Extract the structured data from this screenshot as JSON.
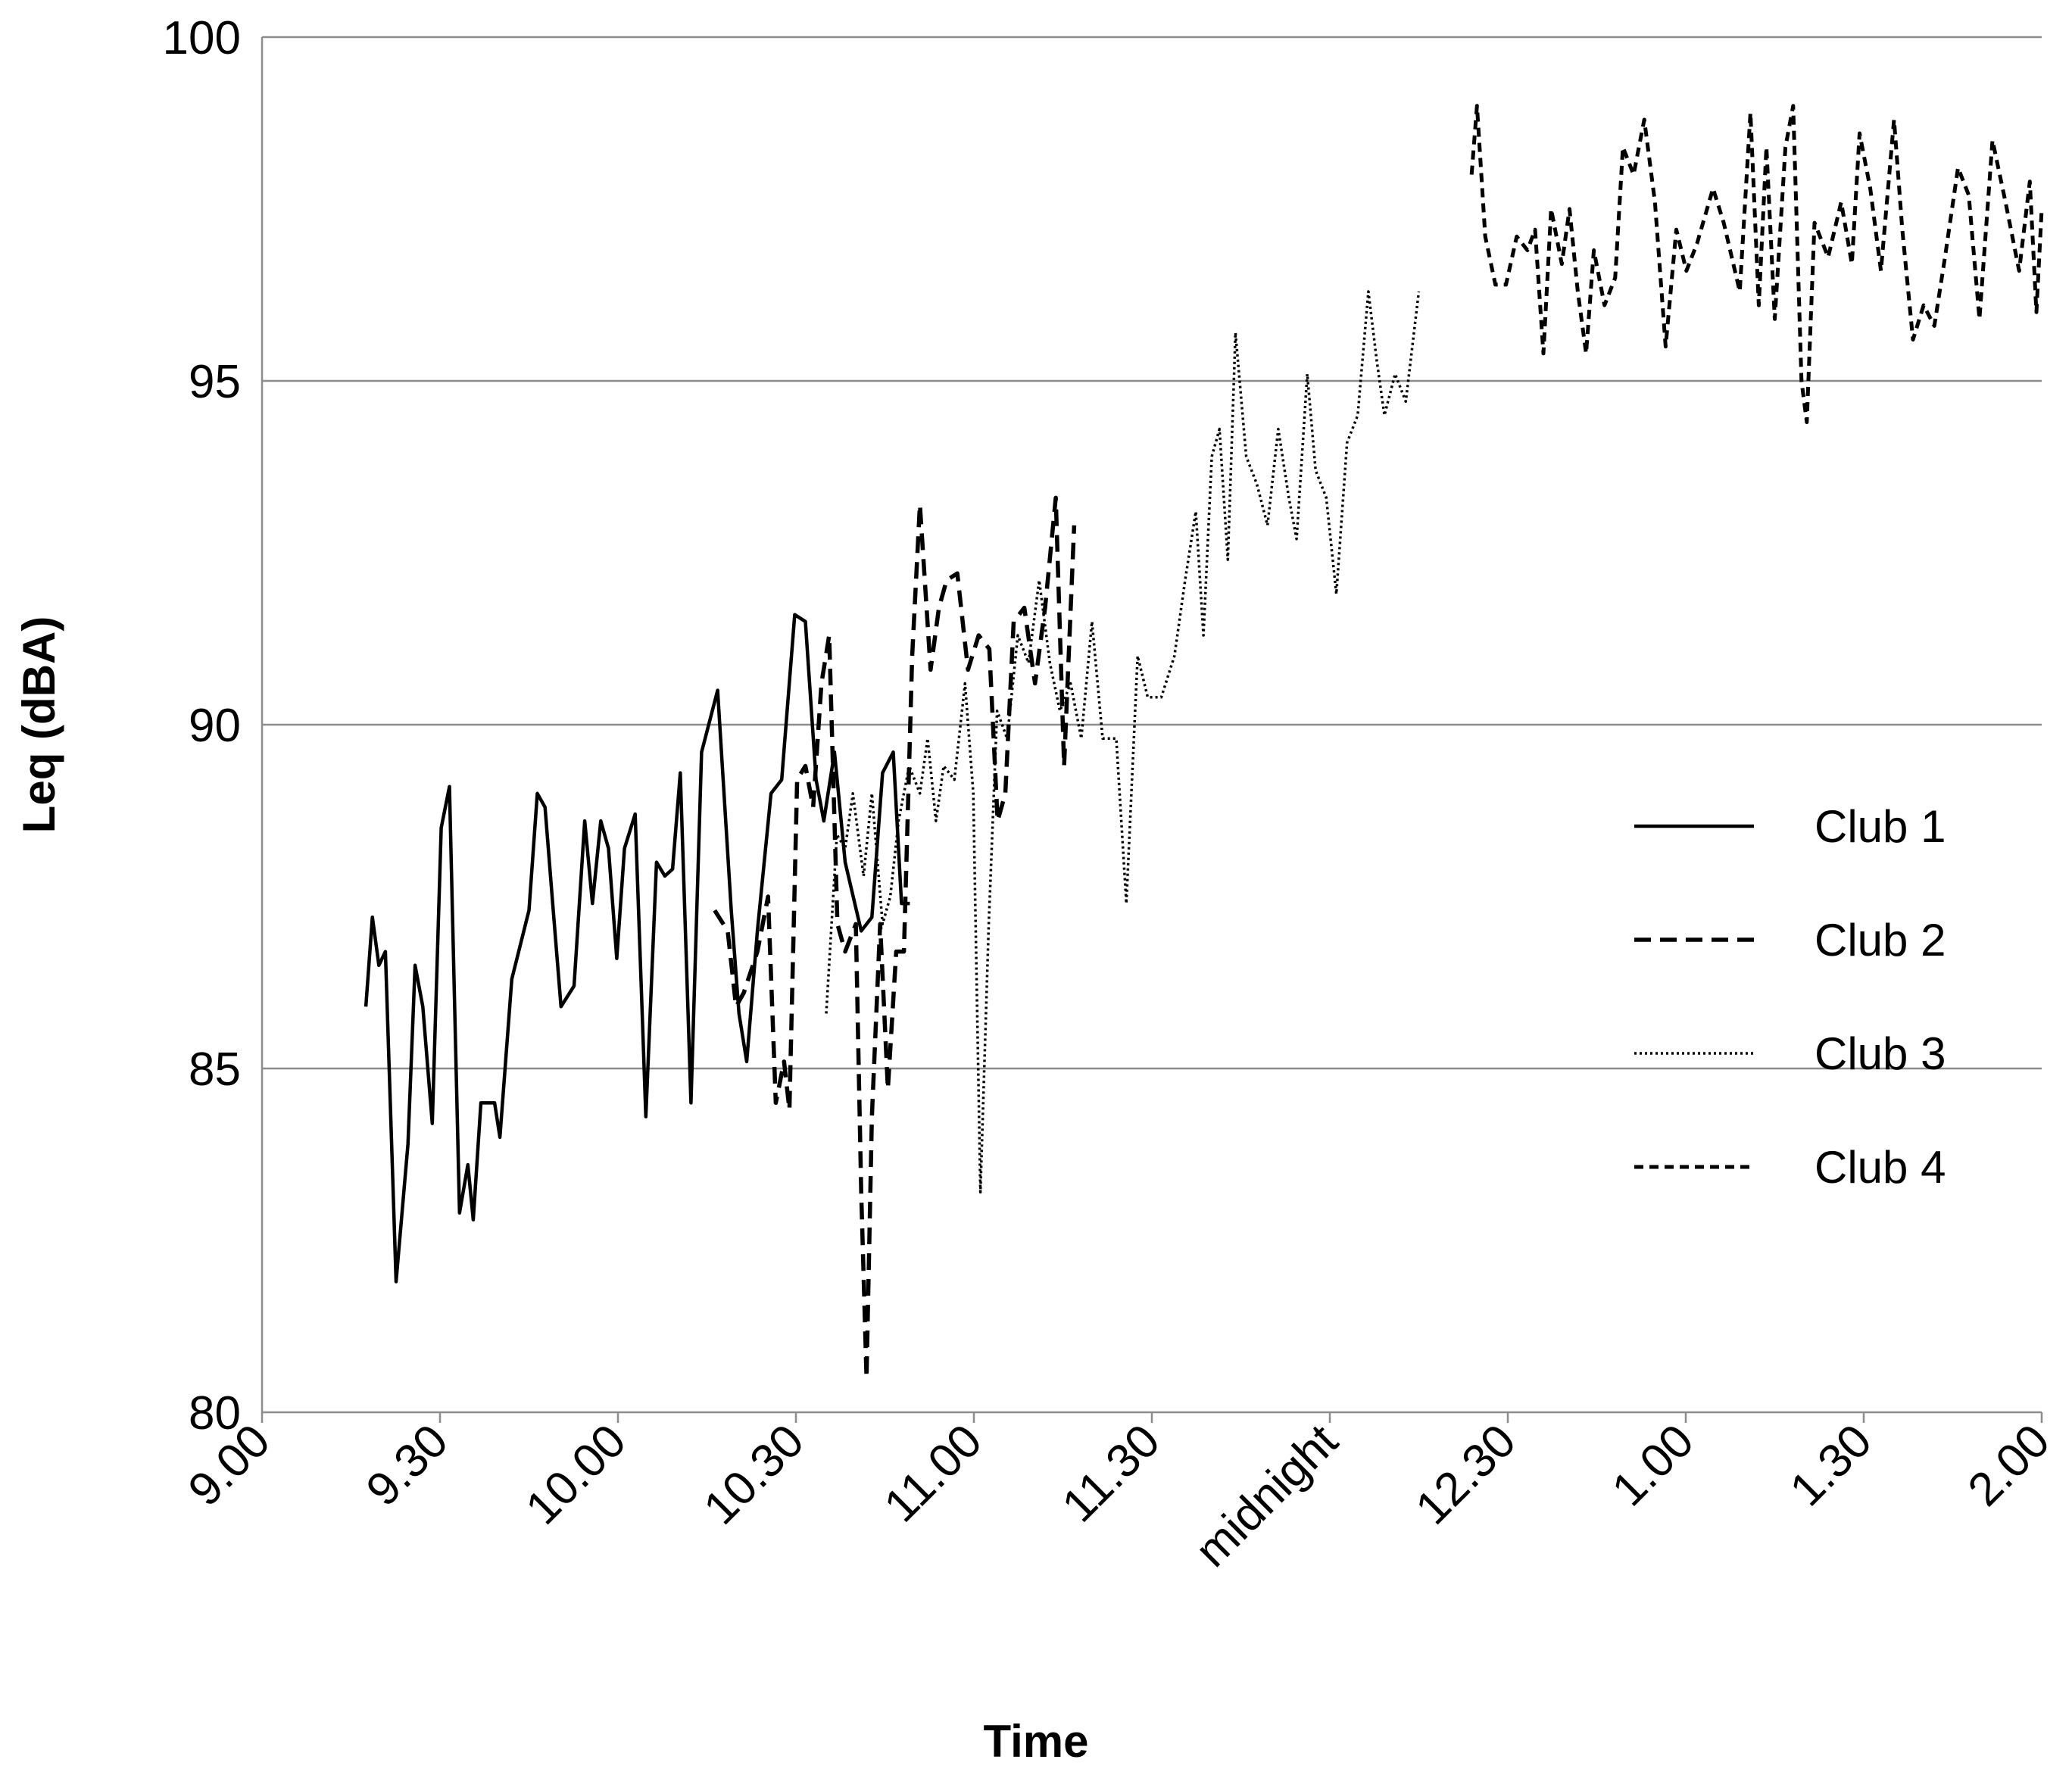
{
  "chart_data": {
    "type": "line",
    "x_label": "Time",
    "y_label": "Leq (dBA)",
    "xlim": [
      0,
      300
    ],
    "ylim": [
      80,
      100
    ],
    "xticks": [
      {
        "value": 0,
        "label": "9.00"
      },
      {
        "value": 30,
        "label": "9.30"
      },
      {
        "value": 60,
        "label": "10.00"
      },
      {
        "value": 90,
        "label": "10.30"
      },
      {
        "value": 120,
        "label": "11.00"
      },
      {
        "value": 150,
        "label": "11.30"
      },
      {
        "value": 180,
        "label": "midnight"
      },
      {
        "value": 210,
        "label": "12.30"
      },
      {
        "value": 240,
        "label": "1.00"
      },
      {
        "value": 270,
        "label": "1.30"
      },
      {
        "value": 300,
        "label": "2.00"
      }
    ],
    "yticks": [
      80,
      85,
      90,
      95,
      100
    ],
    "grid": true,
    "legend": "right",
    "series": [
      {
        "name": "Club 1",
        "color": "#000000",
        "line_style": "solid",
        "x": [
          17.5,
          18.6,
          19.7,
          20.8,
          22.6,
          24.6,
          25.8,
          27.1,
          28.7,
          30.2,
          31.6,
          33.3,
          34.7,
          35.6,
          36.9,
          39.2,
          40.1,
          42.1,
          45.0,
          46.4,
          47.7,
          49.0,
          50.4,
          52.6,
          54.4,
          55.7,
          57.1,
          58.4,
          59.8,
          61.1,
          62.9,
          64.7,
          66.5,
          67.9,
          69.2,
          70.5,
          72.3,
          74.1,
          76.8,
          79.1,
          80.4,
          81.7,
          83.5,
          85.8,
          87.6,
          89.8,
          91.6,
          93.4,
          94.7,
          96.5,
          98.3,
          101.0,
          102.8,
          104.6,
          106.4,
          107.8,
          109.2
        ],
        "values": [
          85.9,
          87.2,
          86.5,
          86.7,
          81.9,
          83.9,
          86.5,
          85.9,
          84.2,
          88.5,
          89.1,
          82.9,
          83.6,
          82.8,
          84.5,
          84.5,
          84.0,
          86.3,
          87.3,
          89.0,
          88.8,
          87.4,
          85.9,
          86.2,
          88.6,
          87.4,
          88.6,
          88.2,
          86.6,
          88.2,
          88.7,
          84.3,
          88.0,
          87.8,
          87.9,
          89.3,
          84.5,
          89.6,
          90.5,
          87.3,
          85.8,
          85.1,
          87.0,
          89.0,
          89.2,
          91.6,
          91.5,
          89.2,
          88.6,
          89.6,
          88.0,
          87.0,
          87.2,
          89.3,
          89.6,
          87.4,
          87.4
        ]
      },
      {
        "name": "Club 2",
        "color": "#000000",
        "line_style": "dashed",
        "x": [
          76.3,
          78.5,
          79.9,
          81.2,
          83.5,
          85.3,
          86.6,
          88.0,
          88.9,
          90.2,
          91.6,
          92.9,
          94.3,
          95.6,
          97.0,
          98.3,
          100.1,
          101.0,
          101.9,
          102.8,
          104.2,
          105.5,
          106.9,
          108.2,
          109.6,
          110.9,
          112.7,
          114.1,
          115.4,
          117.2,
          119.0,
          120.8,
          122.6,
          124.0,
          125.3,
          126.7,
          128.5,
          130.3,
          132.0,
          133.8,
          135.2,
          136.9
        ],
        "values": [
          87.3,
          87.0,
          85.9,
          86.1,
          86.7,
          87.5,
          84.5,
          85.1,
          84.4,
          89.2,
          89.4,
          88.8,
          90.6,
          91.3,
          87.1,
          86.7,
          87.1,
          83.2,
          80.5,
          84.3,
          87.1,
          84.7,
          86.7,
          86.7,
          91.0,
          93.2,
          90.8,
          91.7,
          92.1,
          92.2,
          90.8,
          91.3,
          91.1,
          88.6,
          89.0,
          91.5,
          91.7,
          90.6,
          91.7,
          93.3,
          89.4,
          92.9
        ]
      },
      {
        "name": "Club 3",
        "color": "#000000",
        "line_style": "dotted",
        "x": [
          95.1,
          96.9,
          98.3,
          99.6,
          101.4,
          102.8,
          104.6,
          105.9,
          107.3,
          109.1,
          110.9,
          112.2,
          113.6,
          114.9,
          116.7,
          118.5,
          119.9,
          121.1,
          122.5,
          123.9,
          125.6,
          127.4,
          129.2,
          131.0,
          132.8,
          134.5,
          136.3,
          138.1,
          139.9,
          141.7,
          144.0,
          145.7,
          147.6,
          149.3,
          151.6,
          153.8,
          155.6,
          157.4,
          158.7,
          160.1,
          161.4,
          162.8,
          164.1,
          165.9,
          167.7,
          169.5,
          171.3,
          173.1,
          174.4,
          176.2,
          177.6,
          179.4,
          181.1,
          182.9,
          184.7,
          186.5,
          187.9,
          189.2,
          191.0,
          192.8,
          195.0
        ],
        "values": [
          85.8,
          88.4,
          88.2,
          89.0,
          87.8,
          89.0,
          87.1,
          87.5,
          88.6,
          89.4,
          89.0,
          89.8,
          88.6,
          89.4,
          89.2,
          90.6,
          89.0,
          83.2,
          87.1,
          90.2,
          89.8,
          91.3,
          90.9,
          92.1,
          90.9,
          90.2,
          90.6,
          89.8,
          91.5,
          89.8,
          89.8,
          87.4,
          91.0,
          90.4,
          90.4,
          91.0,
          92.1,
          93.1,
          91.3,
          93.9,
          94.3,
          92.4,
          95.7,
          93.9,
          93.5,
          92.9,
          94.3,
          93.3,
          92.7,
          95.1,
          93.7,
          93.3,
          91.9,
          94.1,
          94.5,
          96.3,
          95.3,
          94.5,
          95.1,
          94.7,
          96.3
        ]
      },
      {
        "name": "Club 4",
        "color": "#000000",
        "line_style": "short-dashed",
        "x": [
          203.9,
          204.8,
          206.2,
          207.9,
          209.7,
          211.5,
          213.3,
          214.6,
          216.0,
          217.3,
          219.1,
          220.4,
          221.8,
          223.2,
          224.5,
          226.3,
          228.1,
          229.4,
          231.2,
          233.0,
          234.8,
          236.6,
          238.4,
          240.1,
          241.9,
          244.6,
          246.4,
          249.1,
          250.9,
          252.3,
          253.6,
          255.0,
          256.8,
          258.1,
          259.5,
          260.4,
          261.7,
          264.0,
          266.2,
          268.0,
          269.3,
          271.1,
          272.9,
          275.1,
          276.5,
          278.3,
          280.1,
          281.9,
          283.7,
          285.9,
          287.7,
          289.5,
          291.7,
          293.9,
          296.2,
          298.0,
          299.1,
          300
        ],
        "values": [
          98.0,
          99.0,
          97.1,
          96.4,
          96.4,
          97.1,
          96.9,
          97.2,
          95.4,
          97.5,
          96.7,
          97.5,
          96.3,
          95.4,
          96.9,
          96.1,
          96.5,
          98.4,
          98.0,
          98.8,
          97.6,
          95.5,
          97.2,
          96.6,
          97.0,
          97.8,
          97.3,
          96.3,
          98.9,
          96.1,
          98.4,
          95.9,
          98.4,
          99.0,
          95.0,
          94.4,
          97.3,
          96.8,
          97.6,
          96.7,
          98.6,
          97.8,
          96.6,
          98.8,
          97.2,
          95.6,
          96.1,
          95.8,
          96.8,
          98.1,
          97.7,
          95.9,
          98.5,
          97.6,
          96.6,
          97.9,
          96.0,
          97.5
        ]
      }
    ]
  }
}
